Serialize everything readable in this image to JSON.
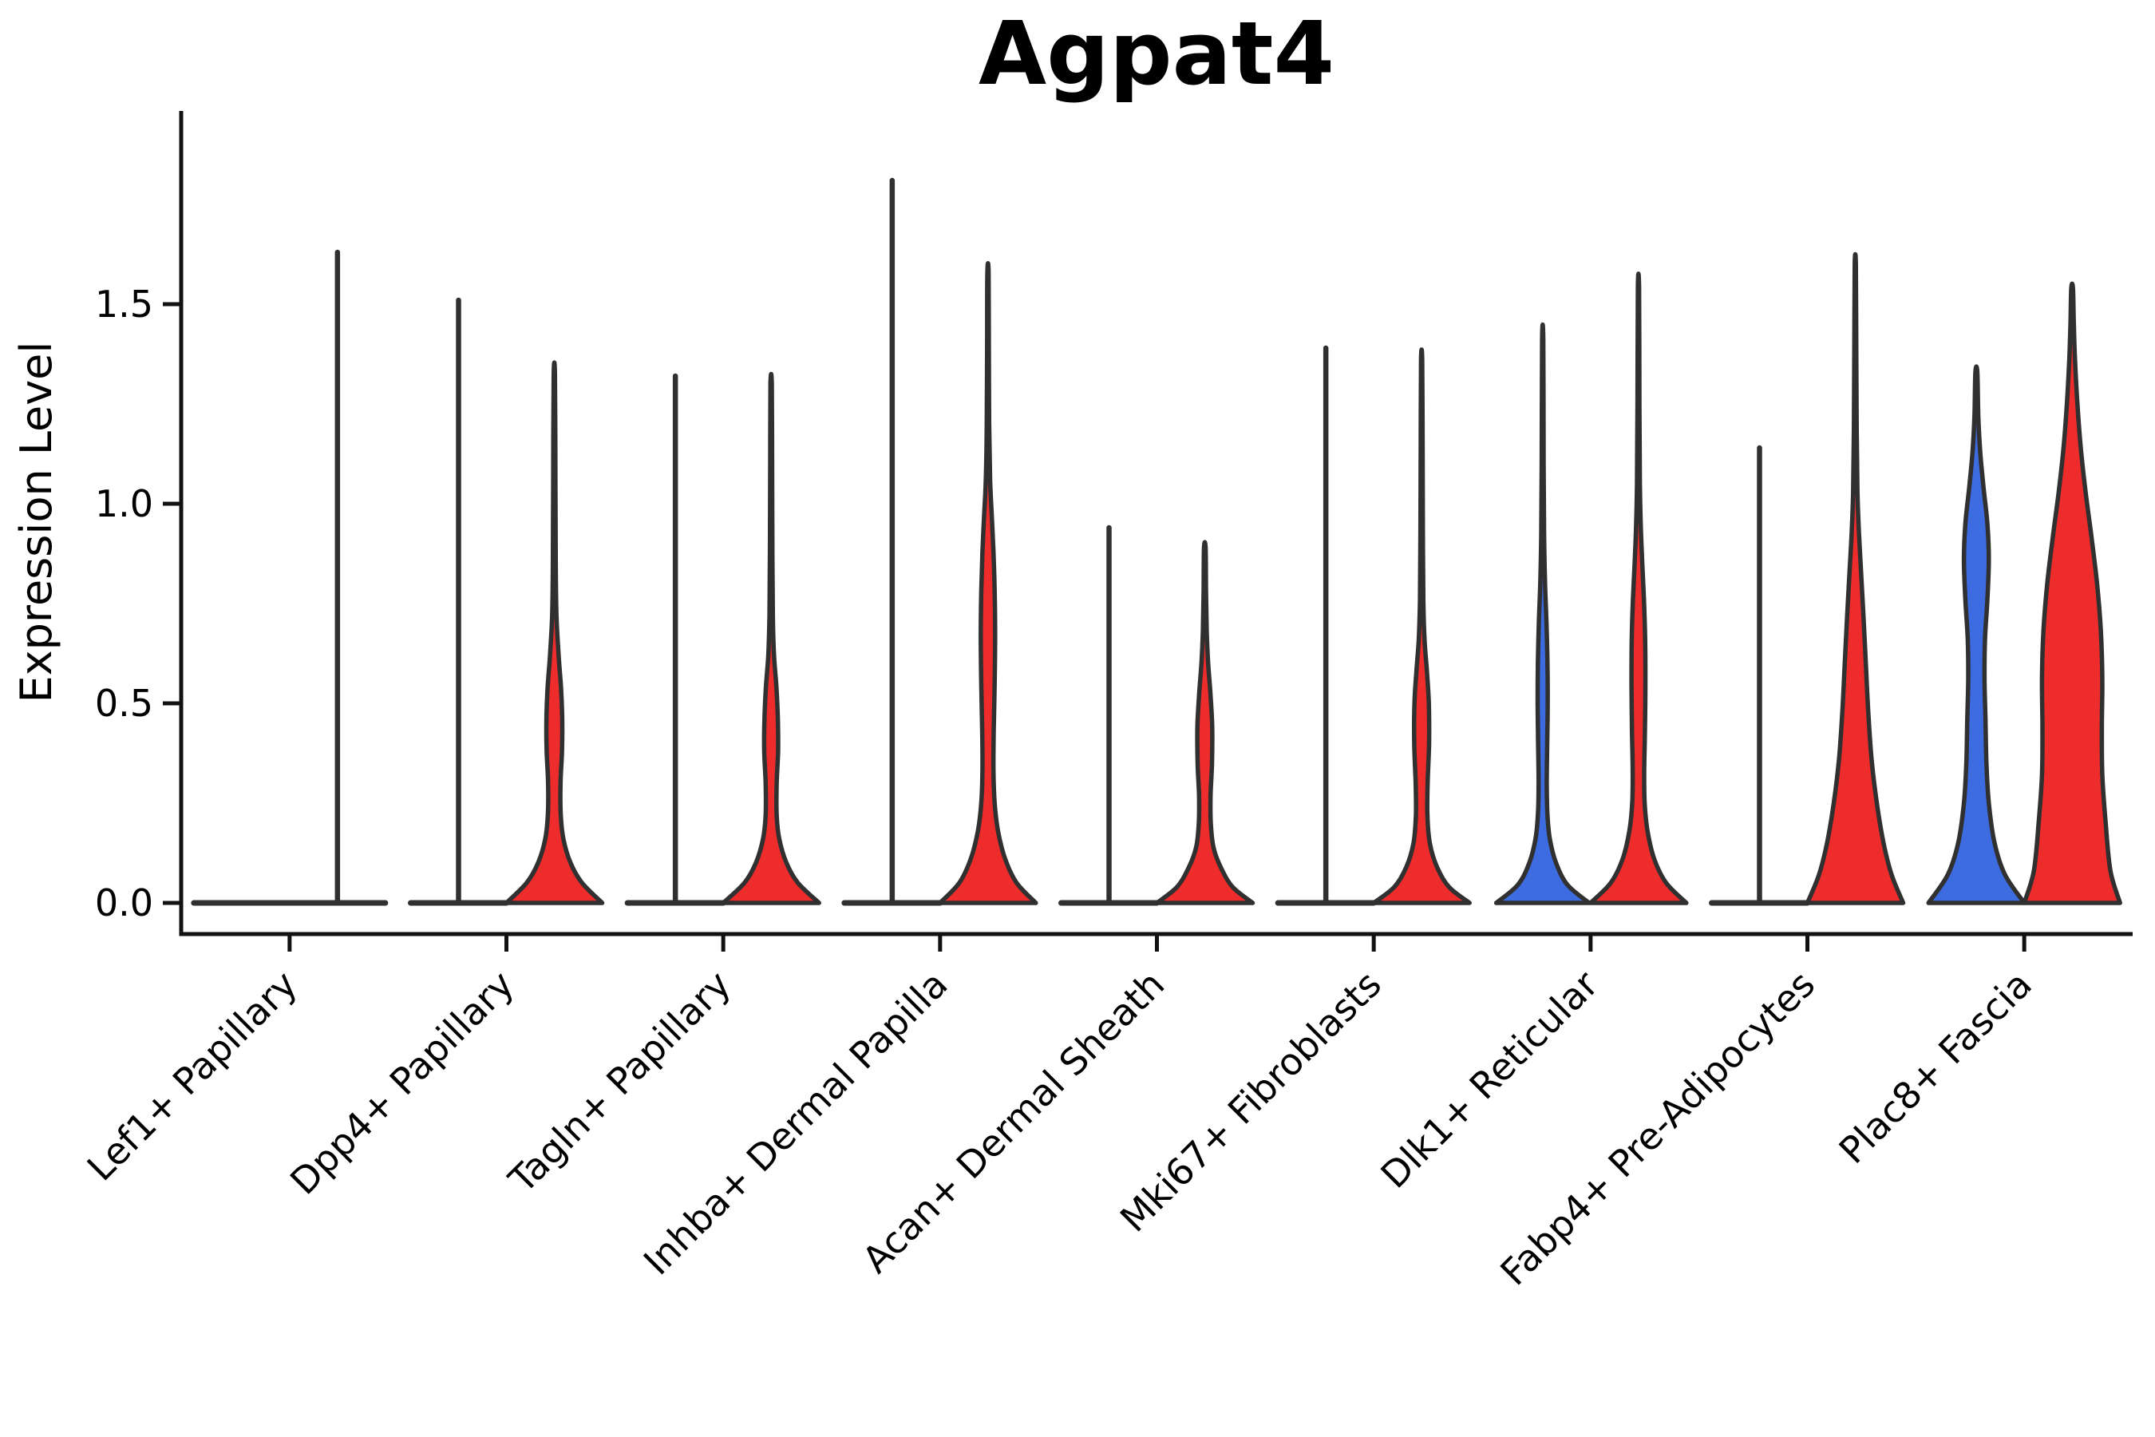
{
  "chart_data": {
    "type": "violin",
    "title": "Agpat4",
    "ylabel": "Expression Level",
    "xlabel": "",
    "ylim": [
      -0.08,
      1.98
    ],
    "yticks": [
      "0.0",
      "0.5",
      "1.0",
      "1.5"
    ],
    "ytick_values": [
      0,
      0.5,
      1.0,
      1.5
    ],
    "grid": false,
    "legend_position": "none",
    "colors": {
      "group1": "#3D6CE0",
      "group2": "#EE2C2C",
      "edge": "#303030",
      "axis": "#111111",
      "text": "#000000",
      "background": "#ffffff"
    },
    "categories": [
      "Lef1+ Papillary",
      "Dpp4+ Papillary",
      "Tagln+ Papillary",
      "Inhba+ Dermal Papilla",
      "Acan+ Dermal Sheath",
      "Mki67+ Fibroblasts",
      "Dlk1+ Reticular",
      "Fabp4+ Pre-Adipocytes",
      "Plac8+ Fascia"
    ],
    "violins": [
      {
        "category": "Lef1+ Papillary",
        "group1": {
          "shape": "flat",
          "max": 0.0
        },
        "group2": {
          "shape": "spike",
          "max": 1.63
        }
      },
      {
        "category": "Dpp4+ Papillary",
        "group1": {
          "shape": "spike",
          "max": 1.51
        },
        "group2": {
          "shape": "density",
          "max": 1.32,
          "profile": [
            [
              0,
              1
            ],
            [
              0.05,
              0.58
            ],
            [
              0.1,
              0.34
            ],
            [
              0.16,
              0.19
            ],
            [
              0.22,
              0.135
            ],
            [
              0.3,
              0.13
            ],
            [
              0.38,
              0.16
            ],
            [
              0.46,
              0.165
            ],
            [
              0.54,
              0.14
            ],
            [
              0.62,
              0.09
            ],
            [
              0.72,
              0.045
            ],
            [
              0.85,
              0.03
            ],
            [
              1.05,
              0.024
            ],
            [
              1.32,
              0.014
            ]
          ]
        }
      },
      {
        "category": "Tagln+ Papillary",
        "group1": {
          "shape": "spike",
          "max": 1.32
        },
        "group2": {
          "shape": "density",
          "max": 1.3,
          "profile": [
            [
              0,
              1
            ],
            [
              0.05,
              0.56
            ],
            [
              0.1,
              0.32
            ],
            [
              0.16,
              0.17
            ],
            [
              0.22,
              0.115
            ],
            [
              0.3,
              0.115
            ],
            [
              0.38,
              0.145
            ],
            [
              0.46,
              0.14
            ],
            [
              0.54,
              0.11
            ],
            [
              0.62,
              0.06
            ],
            [
              0.72,
              0.035
            ],
            [
              0.9,
              0.025
            ],
            [
              1.1,
              0.02
            ],
            [
              1.3,
              0.014
            ]
          ]
        }
      },
      {
        "category": "Inhba+ Dermal Papilla",
        "group1": {
          "shape": "spike",
          "max": 1.81
        },
        "group2": {
          "shape": "density",
          "max": 1.58,
          "profile": [
            [
              0,
              1
            ],
            [
              0.05,
              0.6
            ],
            [
              0.11,
              0.36
            ],
            [
              0.18,
              0.21
            ],
            [
              0.25,
              0.14
            ],
            [
              0.33,
              0.115
            ],
            [
              0.43,
              0.12
            ],
            [
              0.55,
              0.14
            ],
            [
              0.67,
              0.15
            ],
            [
              0.78,
              0.14
            ],
            [
              0.88,
              0.115
            ],
            [
              0.97,
              0.08
            ],
            [
              1.06,
              0.045
            ],
            [
              1.2,
              0.025
            ],
            [
              1.4,
              0.018
            ],
            [
              1.58,
              0.013
            ]
          ]
        }
      },
      {
        "category": "Acan+ Dermal Sheath",
        "group1": {
          "shape": "spike",
          "max": 0.94
        },
        "group2": {
          "shape": "density",
          "max": 0.89,
          "profile": [
            [
              0,
              1
            ],
            [
              0.04,
              0.58
            ],
            [
              0.09,
              0.33
            ],
            [
              0.14,
              0.18
            ],
            [
              0.2,
              0.125
            ],
            [
              0.27,
              0.12
            ],
            [
              0.35,
              0.15
            ],
            [
              0.44,
              0.155
            ],
            [
              0.52,
              0.12
            ],
            [
              0.6,
              0.07
            ],
            [
              0.68,
              0.04
            ],
            [
              0.78,
              0.025
            ],
            [
              0.89,
              0.016
            ]
          ]
        }
      },
      {
        "category": "Mki67+ Fibroblasts",
        "group1": {
          "shape": "spike",
          "max": 1.39
        },
        "group2": {
          "shape": "density",
          "max": 1.36,
          "profile": [
            [
              0,
              1
            ],
            [
              0.04,
              0.57
            ],
            [
              0.09,
              0.32
            ],
            [
              0.15,
              0.17
            ],
            [
              0.22,
              0.12
            ],
            [
              0.3,
              0.125
            ],
            [
              0.4,
              0.155
            ],
            [
              0.5,
              0.15
            ],
            [
              0.58,
              0.11
            ],
            [
              0.66,
              0.06
            ],
            [
              0.76,
              0.035
            ],
            [
              0.95,
              0.025
            ],
            [
              1.15,
              0.02
            ],
            [
              1.36,
              0.013
            ]
          ]
        }
      },
      {
        "category": "Dlk1+ Reticular",
        "group1": {
          "shape": "density",
          "max": 1.41,
          "profile": [
            [
              0,
              0.97
            ],
            [
              0.045,
              0.52
            ],
            [
              0.1,
              0.28
            ],
            [
              0.16,
              0.15
            ],
            [
              0.22,
              0.1
            ],
            [
              0.3,
              0.085
            ],
            [
              0.4,
              0.095
            ],
            [
              0.5,
              0.105
            ],
            [
              0.6,
              0.1
            ],
            [
              0.7,
              0.08
            ],
            [
              0.8,
              0.05
            ],
            [
              0.92,
              0.03
            ],
            [
              1.1,
              0.02
            ],
            [
              1.41,
              0.012
            ]
          ]
        },
        "group2": {
          "shape": "density",
          "max": 1.54,
          "profile": [
            [
              0,
              1
            ],
            [
              0.05,
              0.58
            ],
            [
              0.11,
              0.33
            ],
            [
              0.18,
              0.19
            ],
            [
              0.25,
              0.13
            ],
            [
              0.33,
              0.12
            ],
            [
              0.43,
              0.135
            ],
            [
              0.55,
              0.145
            ],
            [
              0.66,
              0.14
            ],
            [
              0.76,
              0.115
            ],
            [
              0.85,
              0.08
            ],
            [
              0.94,
              0.05
            ],
            [
              1.05,
              0.03
            ],
            [
              1.25,
              0.02
            ],
            [
              1.54,
              0.012
            ]
          ]
        }
      },
      {
        "category": "Fabp4+ Pre-Adipocytes",
        "group1": {
          "shape": "spike",
          "max": 1.14
        },
        "group2": {
          "shape": "density",
          "max": 1.6,
          "profile": [
            [
              0,
              1
            ],
            [
              0.07,
              0.76
            ],
            [
              0.15,
              0.59
            ],
            [
              0.25,
              0.45
            ],
            [
              0.36,
              0.34
            ],
            [
              0.48,
              0.27
            ],
            [
              0.6,
              0.22
            ],
            [
              0.72,
              0.17
            ],
            [
              0.83,
              0.12
            ],
            [
              0.93,
              0.075
            ],
            [
              1.03,
              0.045
            ],
            [
              1.2,
              0.028
            ],
            [
              1.4,
              0.02
            ],
            [
              1.6,
              0.012
            ]
          ]
        }
      },
      {
        "category": "Plac8+ Fascia",
        "group1": {
          "shape": "density",
          "max": 1.33,
          "profile": [
            [
              0,
              1
            ],
            [
              0.07,
              0.6
            ],
            [
              0.15,
              0.38
            ],
            [
              0.25,
              0.26
            ],
            [
              0.35,
              0.21
            ],
            [
              0.46,
              0.19
            ],
            [
              0.56,
              0.17
            ],
            [
              0.66,
              0.18
            ],
            [
              0.76,
              0.23
            ],
            [
              0.86,
              0.26
            ],
            [
              0.95,
              0.23
            ],
            [
              1.04,
              0.15
            ],
            [
              1.13,
              0.08
            ],
            [
              1.22,
              0.04
            ],
            [
              1.33,
              0.02
            ]
          ]
        },
        "group2": {
          "shape": "density",
          "max": 1.54,
          "profile": [
            [
              0,
              1
            ],
            [
              0.08,
              0.8
            ],
            [
              0.2,
              0.7
            ],
            [
              0.32,
              0.63
            ],
            [
              0.44,
              0.62
            ],
            [
              0.56,
              0.63
            ],
            [
              0.68,
              0.6
            ],
            [
              0.8,
              0.52
            ],
            [
              0.92,
              0.4
            ],
            [
              1.03,
              0.28
            ],
            [
              1.14,
              0.18
            ],
            [
              1.25,
              0.11
            ],
            [
              1.36,
              0.06
            ],
            [
              1.45,
              0.035
            ],
            [
              1.54,
              0.018
            ]
          ]
        }
      }
    ]
  }
}
